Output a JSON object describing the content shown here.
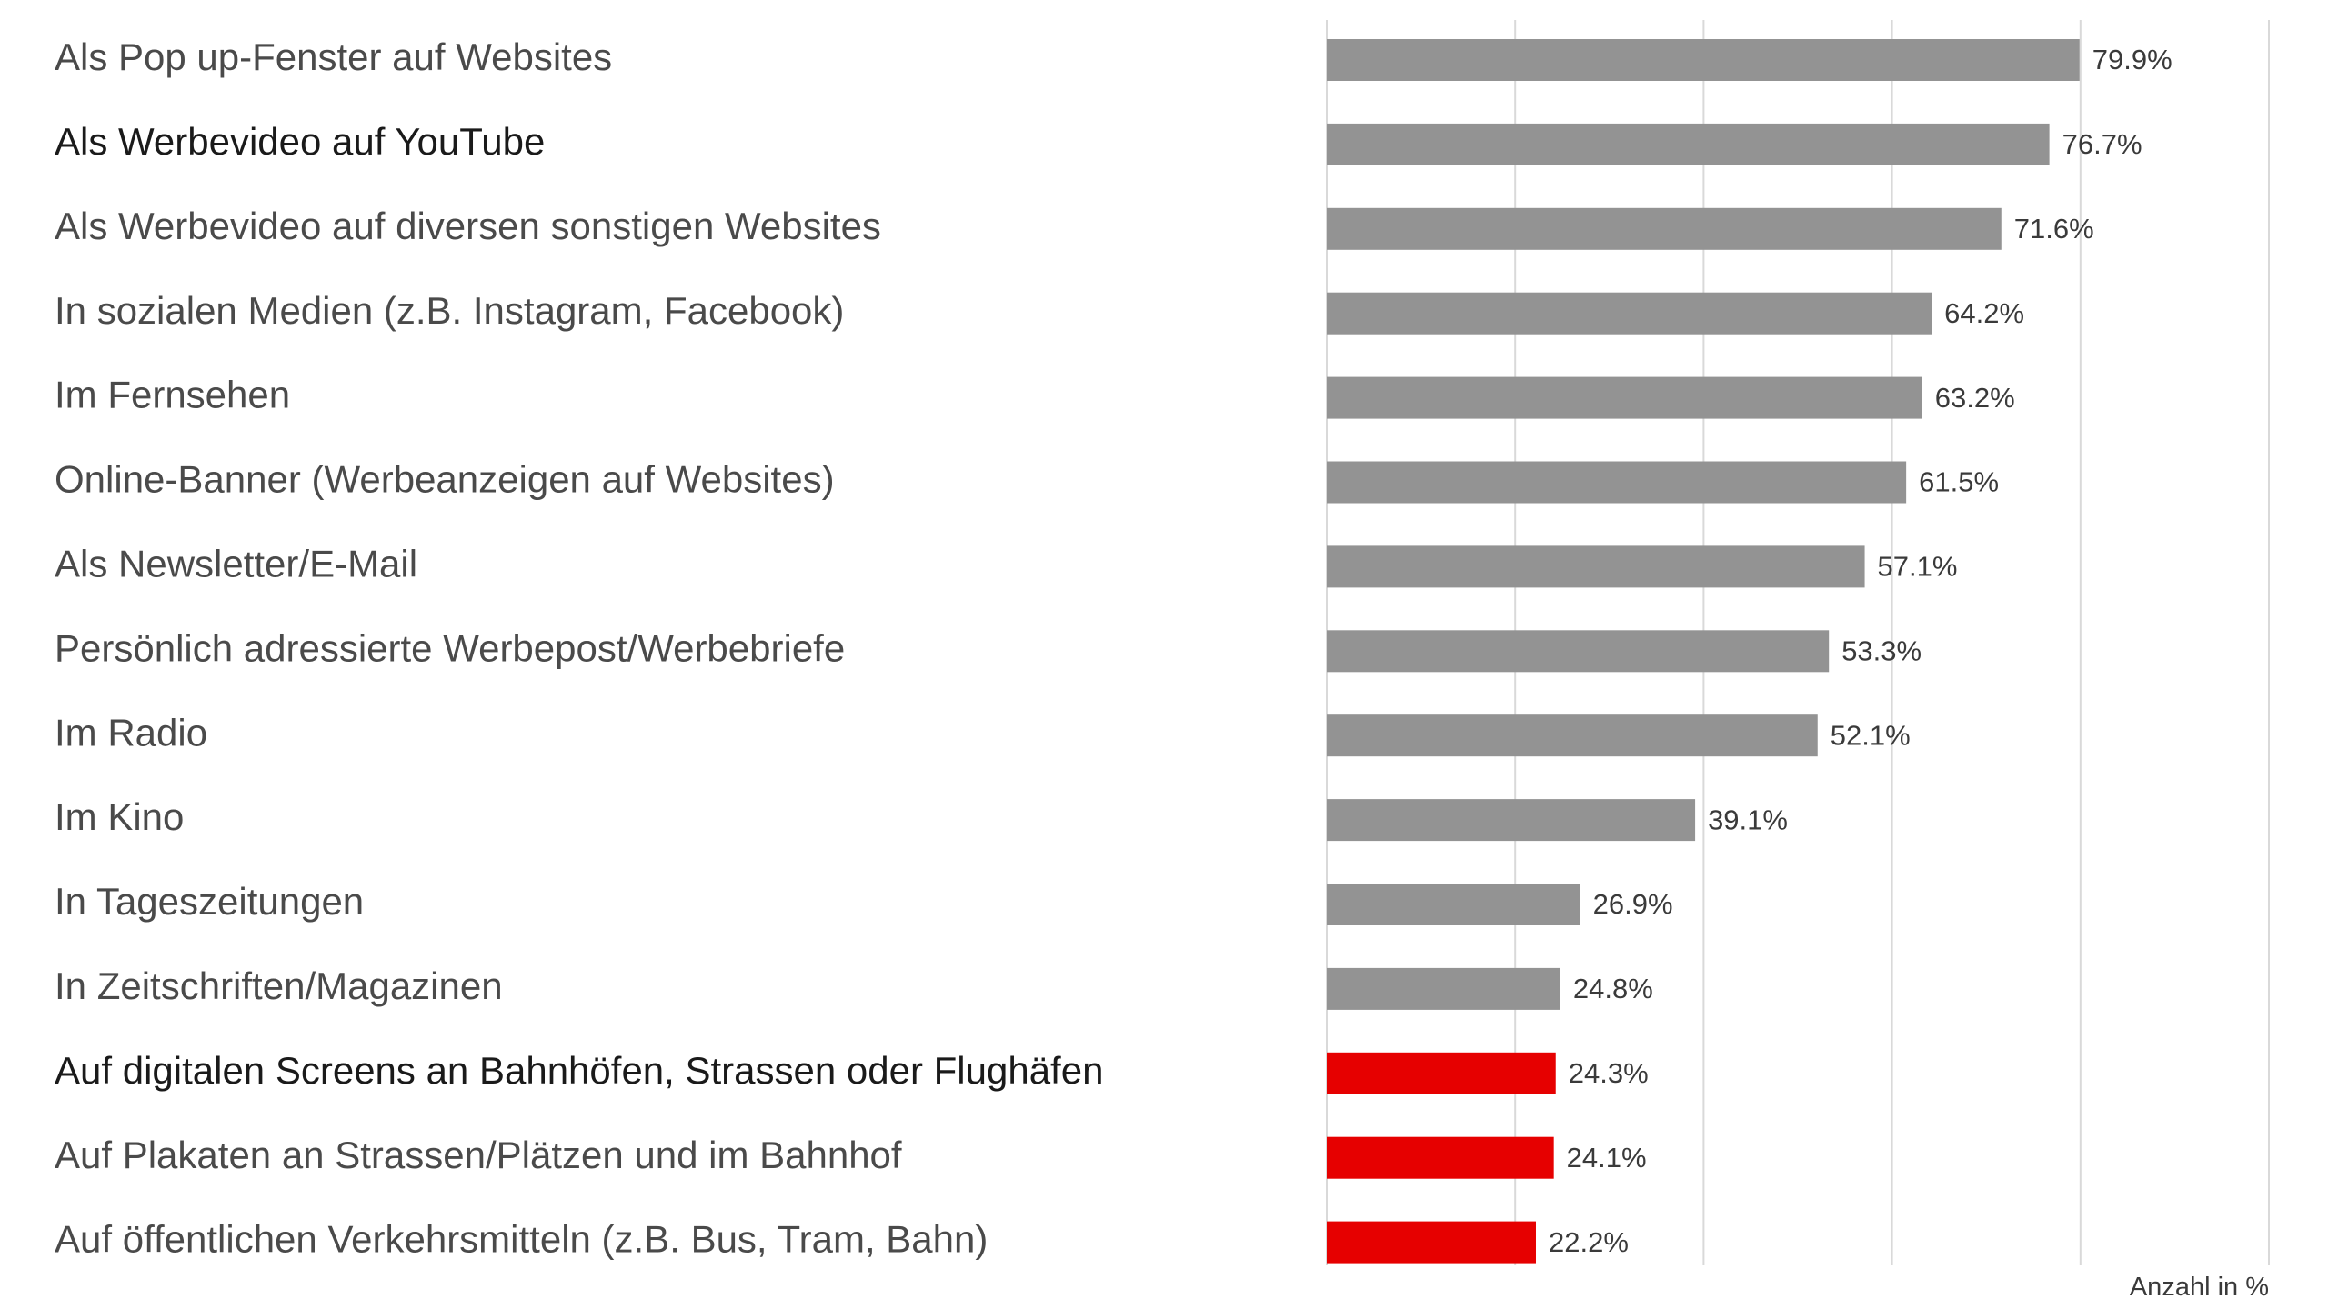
{
  "chart_data": {
    "type": "bar",
    "orientation": "horizontal",
    "title": "",
    "xlabel": "Anzahl in %",
    "ylabel": "",
    "xlim": [
      0,
      100
    ],
    "grid": true,
    "gridlines": [
      0,
      20,
      40,
      60,
      80,
      100
    ],
    "categories": [
      "Als Pop up-Fenster auf Websites",
      "Als Werbevideo auf YouTube",
      "Als Werbevideo auf diversen sonstigen Websites",
      "In sozialen Medien (z.B. Instagram, Facebook)",
      "Im Fernsehen",
      "Online-Banner (Werbeanzeigen auf Websites)",
      "Als Newsletter/E-Mail",
      "Persönlich adressierte Werbepost/Werbebriefe",
      "Im Radio",
      "Im Kino",
      "In Tageszeitungen",
      "In Zeitschriften/Magazinen",
      "Auf digitalen Screens an Bahnhöfen, Strassen oder Flughäfen",
      "Auf Plakaten an Strassen/Plätzen und im Bahnhof",
      "Auf öffentlichen Verkehrsmitteln (z.B. Bus, Tram, Bahn)"
    ],
    "values": [
      79.9,
      76.7,
      71.6,
      64.2,
      63.2,
      61.5,
      57.1,
      53.3,
      52.1,
      39.1,
      26.9,
      24.8,
      24.3,
      24.1,
      22.2
    ],
    "value_labels": [
      "79.9%",
      "76.7%",
      "71.6%",
      "64.2%",
      "63.2%",
      "61.5%",
      "57.1%",
      "53.3%",
      "52.1%",
      "39.1%",
      "26.9%",
      "24.8%",
      "24.3%",
      "24.1%",
      "22.2%"
    ],
    "highlighted": [
      false,
      false,
      false,
      false,
      false,
      false,
      false,
      false,
      false,
      false,
      false,
      false,
      true,
      true,
      true
    ],
    "label_emphasis": [
      false,
      true,
      false,
      false,
      false,
      false,
      false,
      false,
      false,
      false,
      false,
      false,
      true,
      false,
      false
    ],
    "colors": {
      "default_bar": "#939393",
      "highlight_bar": "#e60000",
      "label_text": "#4a4a4a",
      "label_text_emphasis": "#1a1a1a",
      "value_text": "#3a3a3a",
      "grid": "#d9d9d9"
    }
  }
}
